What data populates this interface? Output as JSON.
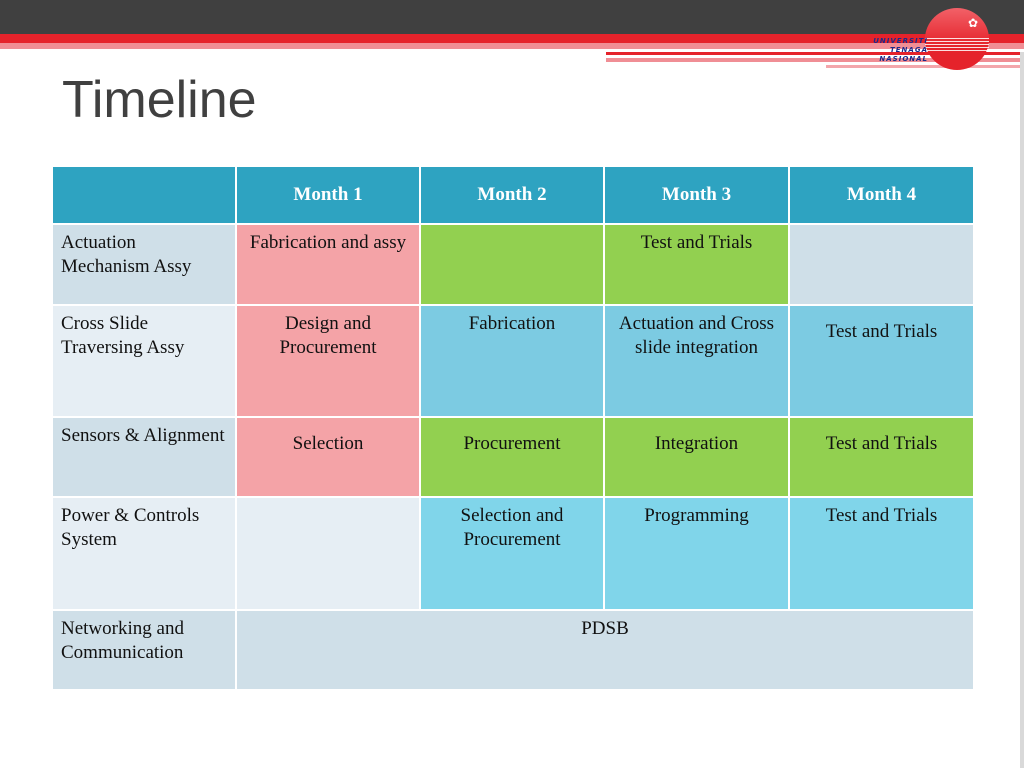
{
  "slide": {
    "title": "Timeline",
    "logo_text": [
      "UNIVERSITI",
      "TENAGA",
      "NASIONAL"
    ],
    "colors": {
      "header": "#2ea3c1",
      "pink": "#f4a3a7",
      "green": "#92d050",
      "blue": "#7ccbe2",
      "row_label": "#cfdfe8",
      "accent_red": "#e5232b",
      "dark_bar": "#404040"
    }
  },
  "table": {
    "headers": [
      "",
      "Month 1",
      "Month 2",
      "Month 3",
      "Month 4"
    ],
    "rows": [
      {
        "label": "Actuation Mechanism Assy",
        "cells": [
          "Fabrication and assy",
          "",
          "Test and Trials",
          ""
        ]
      },
      {
        "label": "Cross Slide Traversing Assy",
        "cells": [
          "Design and Procurement",
          "Fabrication",
          "Actuation and Cross slide integration",
          "Test and Trials"
        ]
      },
      {
        "label": "Sensors & Alignment",
        "cells": [
          "Selection",
          "Procurement",
          "Integration",
          "Test and Trials"
        ]
      },
      {
        "label": "Power & Controls System",
        "cells": [
          "",
          "Selection and Procurement",
          "Programming",
          "Test and Trials"
        ]
      },
      {
        "label": "Networking and Communication",
        "span_text": "PDSB"
      }
    ]
  }
}
